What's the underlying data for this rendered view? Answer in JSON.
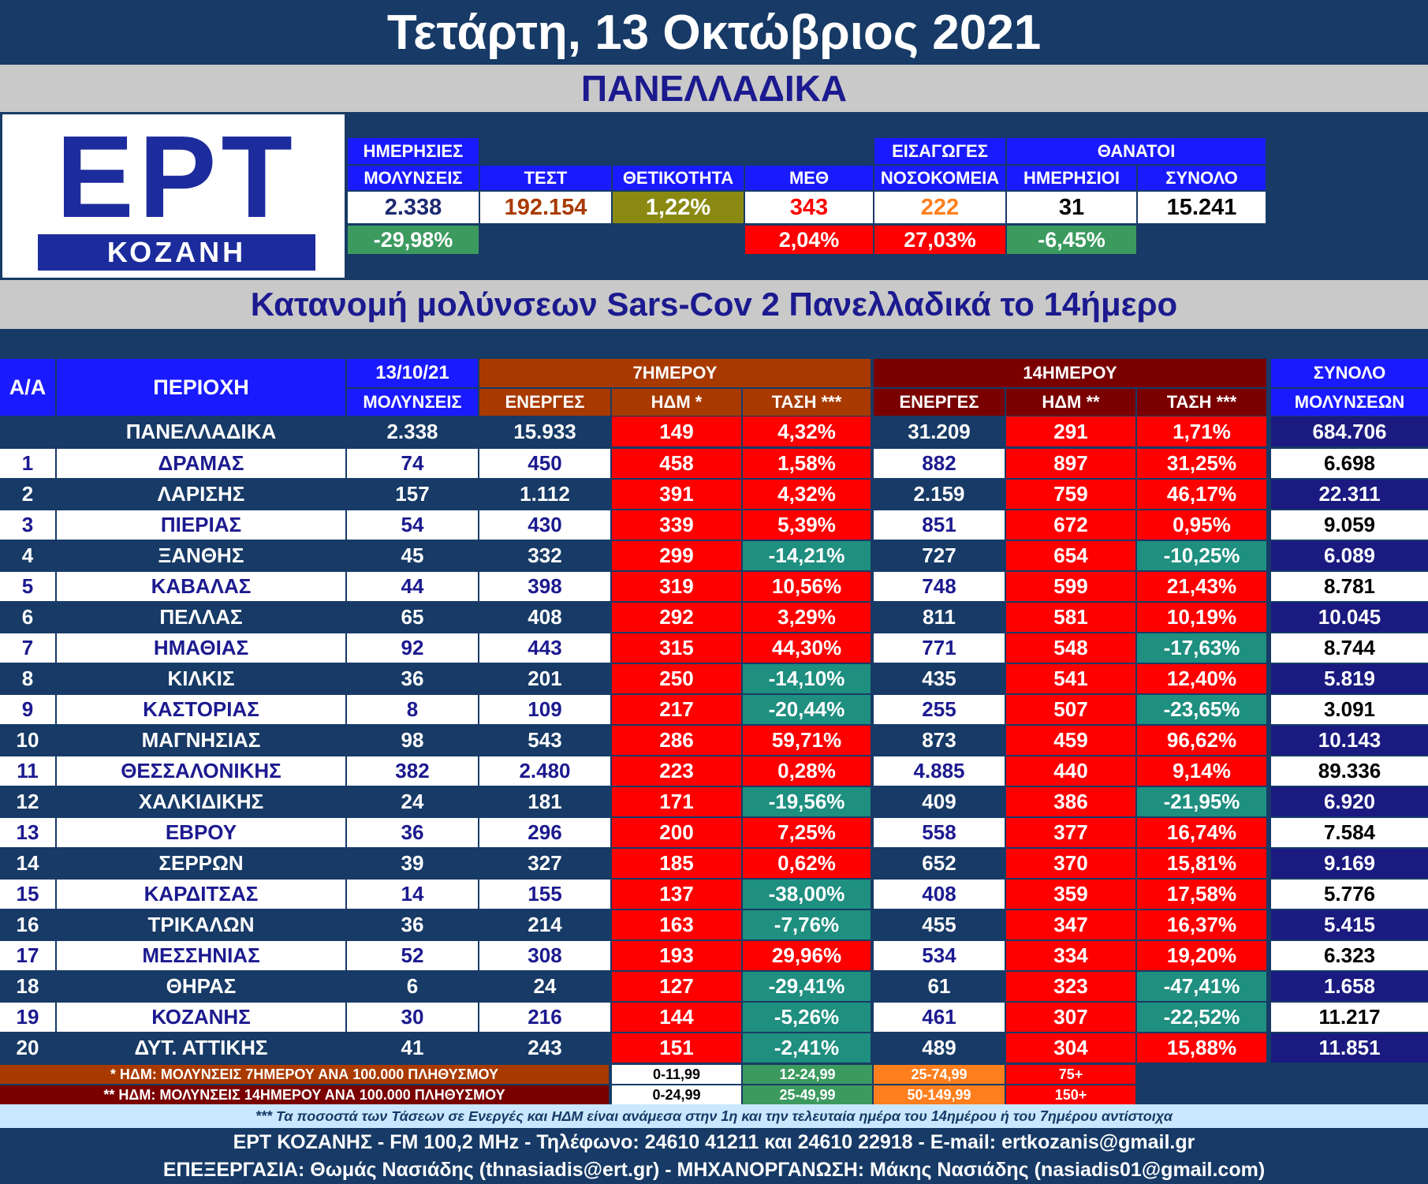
{
  "header": {
    "date_title": "Τετάρτη, 13 Οκτώβριος 2021",
    "region": "ΠΑΝΕΛΛΑΔΙΚΑ",
    "subtitle": "Κατανομή μολύνσεων Sars-Cov 2 Πανελλαδικά το 14ήμερο"
  },
  "logo": {
    "main": "ΕΡΤ",
    "sub": "ΚΟΖΑΝΗ"
  },
  "stats": {
    "daily_label_1": "ΗΜΕΡΗΣΙΕΣ",
    "daily_label_2": "ΜΟΛΥΝΣΕΙΣ",
    "tests_label": "ΤΕΣΤ",
    "positivity_label": "ΘΕΤΙΚΟΤΗΤΑ",
    "icu_label": "ΜΕΘ",
    "admissions_label_1": "ΕΙΣΑΓΩΓΕΣ",
    "admissions_label_2": "ΝΟΣΟΚΟΜΕΙΑ",
    "deaths_label": "ΘΑΝΑΤΟΙ",
    "deaths_daily_label": "ΗΜΕΡΗΣΙΟΙ",
    "deaths_total_label": "ΣΥΝΟΛΟ",
    "daily_value": "2.338",
    "tests_value": "192.154",
    "positivity_value": "1,22%",
    "icu_value": "343",
    "admissions_value": "222",
    "deaths_daily_value": "31",
    "deaths_total_value": "15.241",
    "daily_change": "-29,98%",
    "icu_change": "2,04%",
    "admissions_change": "27,03%",
    "deaths_change": "-6,45%"
  },
  "table": {
    "col_aa": "Α/Α",
    "col_region": "ΠΕΡΙΟΧΗ",
    "col_date": "13/10/21",
    "col_infections": "ΜΟΛΥΝΣΕΙΣ",
    "group_7": "7ΗΜΕΡΟΥ",
    "group_14": "14ΗΜΕΡΟΥ",
    "group_total": "ΣΥΝΟΛΟ",
    "col_active_7": "ΕΝΕΡΓΕΣ",
    "col_hdm_7": "ΗΔΜ *",
    "col_trend_7": "ΤΑΣΗ ***",
    "col_active_14": "ΕΝΕΡΓΕΣ",
    "col_hdm_14": "ΗΔΜ **",
    "col_trend_14": "ΤΑΣΗ ***",
    "col_total": "ΜΟΛΥΝΣΕΩΝ",
    "national": {
      "name": "ΠΑΝΕΛΛΑΔΙΚΑ",
      "today": "2.338",
      "active7": "15.933",
      "hdm7": "149",
      "trend7": "4,32%",
      "active14": "31.209",
      "hdm14": "291",
      "trend14": "1,71%",
      "total": "684.706"
    },
    "rows": [
      {
        "n": "1",
        "name": "ΔΡΑΜΑΣ",
        "today": "74",
        "active7": "450",
        "hdm7": "458",
        "trend7": "1,58%",
        "active14": "882",
        "hdm14": "897",
        "trend14": "31,25%",
        "total": "6.698"
      },
      {
        "n": "2",
        "name": "ΛΑΡΙΣΗΣ",
        "today": "157",
        "active7": "1.112",
        "hdm7": "391",
        "trend7": "4,32%",
        "active14": "2.159",
        "hdm14": "759",
        "trend14": "46,17%",
        "total": "22.311"
      },
      {
        "n": "3",
        "name": "ΠΙΕΡΙΑΣ",
        "today": "54",
        "active7": "430",
        "hdm7": "339",
        "trend7": "5,39%",
        "active14": "851",
        "hdm14": "672",
        "trend14": "0,95%",
        "total": "9.059"
      },
      {
        "n": "4",
        "name": "ΞΑΝΘΗΣ",
        "today": "45",
        "active7": "332",
        "hdm7": "299",
        "trend7": "-14,21%",
        "active14": "727",
        "hdm14": "654",
        "trend14": "-10,25%",
        "total": "6.089"
      },
      {
        "n": "5",
        "name": "ΚΑΒΑΛΑΣ",
        "today": "44",
        "active7": "398",
        "hdm7": "319",
        "trend7": "10,56%",
        "active14": "748",
        "hdm14": "599",
        "trend14": "21,43%",
        "total": "8.781"
      },
      {
        "n": "6",
        "name": "ΠΕΛΛΑΣ",
        "today": "65",
        "active7": "408",
        "hdm7": "292",
        "trend7": "3,29%",
        "active14": "811",
        "hdm14": "581",
        "trend14": "10,19%",
        "total": "10.045"
      },
      {
        "n": "7",
        "name": "ΗΜΑΘΙΑΣ",
        "today": "92",
        "active7": "443",
        "hdm7": "315",
        "trend7": "44,30%",
        "active14": "771",
        "hdm14": "548",
        "trend14": "-17,63%",
        "total": "8.744"
      },
      {
        "n": "8",
        "name": "ΚΙΛΚΙΣ",
        "today": "36",
        "active7": "201",
        "hdm7": "250",
        "trend7": "-14,10%",
        "active14": "435",
        "hdm14": "541",
        "trend14": "12,40%",
        "total": "5.819"
      },
      {
        "n": "9",
        "name": "ΚΑΣΤΟΡΙΑΣ",
        "today": "8",
        "active7": "109",
        "hdm7": "217",
        "trend7": "-20,44%",
        "active14": "255",
        "hdm14": "507",
        "trend14": "-23,65%",
        "total": "3.091"
      },
      {
        "n": "10",
        "name": "ΜΑΓΝΗΣΙΑΣ",
        "today": "98",
        "active7": "543",
        "hdm7": "286",
        "trend7": "59,71%",
        "active14": "873",
        "hdm14": "459",
        "trend14": "96,62%",
        "total": "10.143"
      },
      {
        "n": "11",
        "name": "ΘΕΣΣΑΛΟΝΙΚΗΣ",
        "today": "382",
        "active7": "2.480",
        "hdm7": "223",
        "trend7": "0,28%",
        "active14": "4.885",
        "hdm14": "440",
        "trend14": "9,14%",
        "total": "89.336"
      },
      {
        "n": "12",
        "name": "ΧΑΛΚΙΔΙΚΗΣ",
        "today": "24",
        "active7": "181",
        "hdm7": "171",
        "trend7": "-19,56%",
        "active14": "409",
        "hdm14": "386",
        "trend14": "-21,95%",
        "total": "6.920"
      },
      {
        "n": "13",
        "name": "ΕΒΡΟΥ",
        "today": "36",
        "active7": "296",
        "hdm7": "200",
        "trend7": "7,25%",
        "active14": "558",
        "hdm14": "377",
        "trend14": "16,74%",
        "total": "7.584"
      },
      {
        "n": "14",
        "name": "ΣΕΡΡΩΝ",
        "today": "39",
        "active7": "327",
        "hdm7": "185",
        "trend7": "0,62%",
        "active14": "652",
        "hdm14": "370",
        "trend14": "15,81%",
        "total": "9.169"
      },
      {
        "n": "15",
        "name": "ΚΑΡΔΙΤΣΑΣ",
        "today": "14",
        "active7": "155",
        "hdm7": "137",
        "trend7": "-38,00%",
        "active14": "408",
        "hdm14": "359",
        "trend14": "17,58%",
        "total": "5.776"
      },
      {
        "n": "16",
        "name": "ΤΡΙΚΑΛΩΝ",
        "today": "36",
        "active7": "214",
        "hdm7": "163",
        "trend7": "-7,76%",
        "active14": "455",
        "hdm14": "347",
        "trend14": "16,37%",
        "total": "5.415"
      },
      {
        "n": "17",
        "name": "ΜΕΣΣΗΝΙΑΣ",
        "today": "52",
        "active7": "308",
        "hdm7": "193",
        "trend7": "29,96%",
        "active14": "534",
        "hdm14": "334",
        "trend14": "19,20%",
        "total": "6.323"
      },
      {
        "n": "18",
        "name": "ΘΗΡΑΣ",
        "today": "6",
        "active7": "24",
        "hdm7": "127",
        "trend7": "-29,41%",
        "active14": "61",
        "hdm14": "323",
        "trend14": "-47,41%",
        "total": "1.658"
      },
      {
        "n": "19",
        "name": "ΚΟΖΑΝΗΣ",
        "today": "30",
        "active7": "216",
        "hdm7": "144",
        "trend7": "-5,26%",
        "active14": "461",
        "hdm14": "307",
        "trend14": "-22,52%",
        "total": "11.217"
      },
      {
        "n": "20",
        "name": "ΔΥΤ. ΑΤΤΙΚΗΣ",
        "today": "41",
        "active7": "243",
        "hdm7": "151",
        "trend7": "-2,41%",
        "active14": "489",
        "hdm14": "304",
        "trend14": "15,88%",
        "total": "11.851"
      }
    ]
  },
  "legend": {
    "hdm7_note": "* ΗΔΜ: ΜΟΛΥΝΣΕΙΣ 7ΗΜΕΡΟΥ ΑΝΑ 100.000 ΠΛΗΘΥΣΜΟΥ",
    "hdm14_note": "** ΗΔΜ: ΜΟΛΥΝΣΕΙΣ 14ΗΜΕΡΟΥ ΑΝΑ 100.000 ΠΛΗΘΥΣΜΟΥ",
    "r7": [
      "0-11,99",
      "12-24,99",
      "25-74,99",
      "75+"
    ],
    "r14": [
      "0-24,99",
      "25-49,99",
      "50-149,99",
      "150+"
    ]
  },
  "footer": {
    "footnote": "*** Τα ποσοστά των Τάσεων σε Ενεργές και ΗΔΜ είναι ανάμεσα στην 1η και την τελευταία ημέρα του 14ημέρου ή του 7ημέρου αντίστοιχα",
    "line1": "ΕΡΤ ΚΟΖΑΝΗΣ - FM 100,2 MHz - Τηλέφωνο:  24610 41211 και 24610 22918 - E-mail: ertkozanis@gmail.gr",
    "line2": "ΕΠΕΞΕΡΓΑΣΙΑ: Θωμάς Νασιάδης (thnasiadis@ert.gr) - ΜΗΧΑΝΟΡΓΑΝΩΣΗ: Μάκης Νασιάδης (nasiadis01@gmail.com)"
  },
  "colors": {
    "navy": "#173a66",
    "blue": "#1a1aff",
    "red": "#ff0000",
    "teal": "#1f8f80",
    "green": "#3c9a5f",
    "olive": "#8a8a12",
    "brown": "#a83a00",
    "darkred": "#7a0000",
    "total_dark": "#1a1a80",
    "orange": "#ff7f1e"
  }
}
